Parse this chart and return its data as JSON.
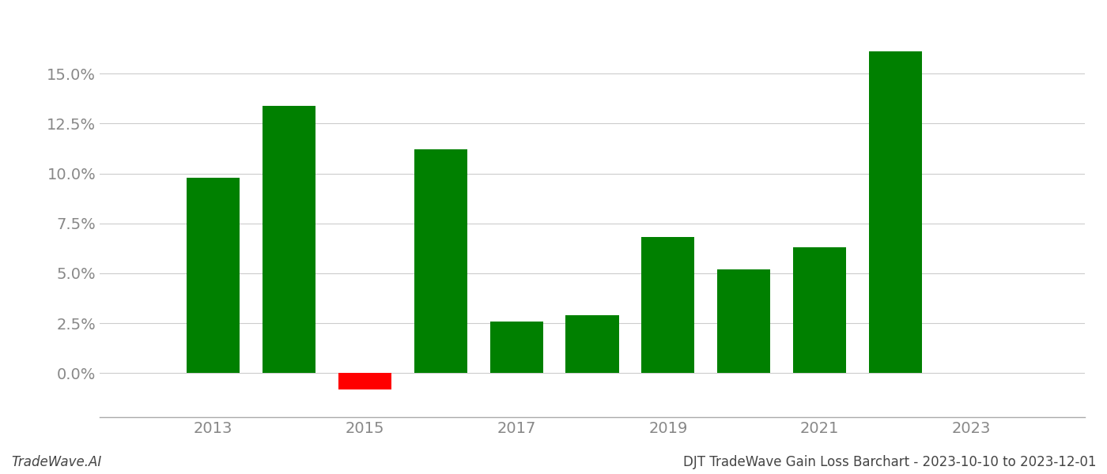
{
  "years": [
    2013,
    2014,
    2015,
    2016,
    2017,
    2018,
    2019,
    2020,
    2021,
    2022,
    2023
  ],
  "values": [
    0.098,
    0.134,
    -0.008,
    0.112,
    0.026,
    0.029,
    0.068,
    0.052,
    0.063,
    0.161,
    null
  ],
  "bar_colors": [
    "#008000",
    "#008000",
    "#ff0000",
    "#008000",
    "#008000",
    "#008000",
    "#008000",
    "#008000",
    "#008000",
    "#008000",
    null
  ],
  "title": "DJT TradeWave Gain Loss Barchart - 2023-10-10 to 2023-12-01",
  "watermark": "TradeWave.AI",
  "xlim": [
    2011.5,
    2024.5
  ],
  "ylim": [
    -0.022,
    0.175
  ],
  "yticks": [
    0.0,
    0.025,
    0.05,
    0.075,
    0.1,
    0.125,
    0.15
  ],
  "xticks": [
    2013,
    2015,
    2017,
    2019,
    2021,
    2023
  ],
  "background_color": "#ffffff",
  "grid_color": "#cccccc",
  "bar_width": 0.7,
  "tick_label_color": "#888888",
  "title_color": "#444444",
  "watermark_color": "#444444",
  "tick_fontsize": 14,
  "footer_fontsize": 12
}
